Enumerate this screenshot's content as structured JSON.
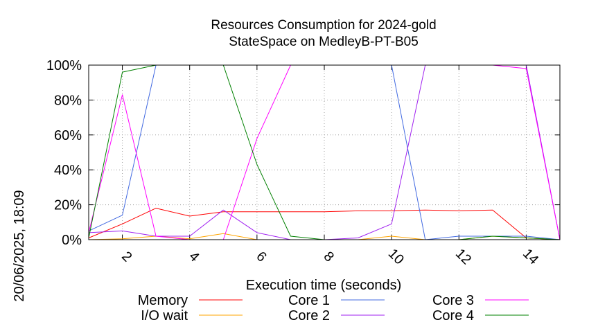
{
  "chart_data": {
    "type": "line",
    "title": "Resources Consumption for 2024-gold",
    "subtitle": "StateSpace on MedleyB-PT-B05",
    "xlabel": "Execution time (seconds)",
    "ylabel": "",
    "timestamp": "20/06/2025, 18:09",
    "xlim": [
      1,
      15
    ],
    "ylim": [
      0,
      100
    ],
    "x_ticks": [
      "2",
      "4",
      "6",
      "8",
      "10",
      "12",
      "14"
    ],
    "y_ticks": [
      "0%",
      "20%",
      "40%",
      "60%",
      "80%",
      "100%"
    ],
    "grid": true,
    "legend_position": "bottom",
    "x": [
      1,
      2,
      3,
      4,
      5,
      6,
      7,
      8,
      9,
      10,
      11,
      12,
      13,
      14,
      15
    ],
    "series": [
      {
        "name": "Memory",
        "color": "#ff0000",
        "values": [
          1,
          9,
          18,
          13.5,
          16,
          16,
          16,
          16,
          16.5,
          16.5,
          17,
          16.5,
          17,
          1,
          0
        ]
      },
      {
        "name": "I/O wait",
        "color": "#ffa500",
        "values": [
          0,
          0.5,
          2,
          0.5,
          3.5,
          0,
          0,
          0,
          0,
          2,
          0,
          0,
          2,
          1,
          0
        ]
      },
      {
        "name": "Core 1",
        "color": "#4169e1",
        "values": [
          5,
          14,
          100,
          100,
          100,
          100,
          100,
          100,
          100,
          100,
          0,
          2,
          2,
          2,
          0
        ]
      },
      {
        "name": "Core 2",
        "color": "#a020f0",
        "values": [
          4,
          5,
          2,
          2,
          17,
          4,
          0,
          0,
          1,
          9,
          100,
          100,
          100,
          100,
          0
        ]
      },
      {
        "name": "Core 3",
        "color": "#ff00ff",
        "values": [
          4,
          83,
          2,
          0,
          0,
          58,
          100,
          100,
          100,
          100,
          100,
          100,
          100,
          98,
          0
        ]
      },
      {
        "name": "Core 4",
        "color": "#008000",
        "values": [
          1,
          96,
          100,
          100,
          100,
          43,
          2,
          0,
          0,
          0,
          0,
          0,
          2,
          1,
          0
        ]
      }
    ]
  }
}
